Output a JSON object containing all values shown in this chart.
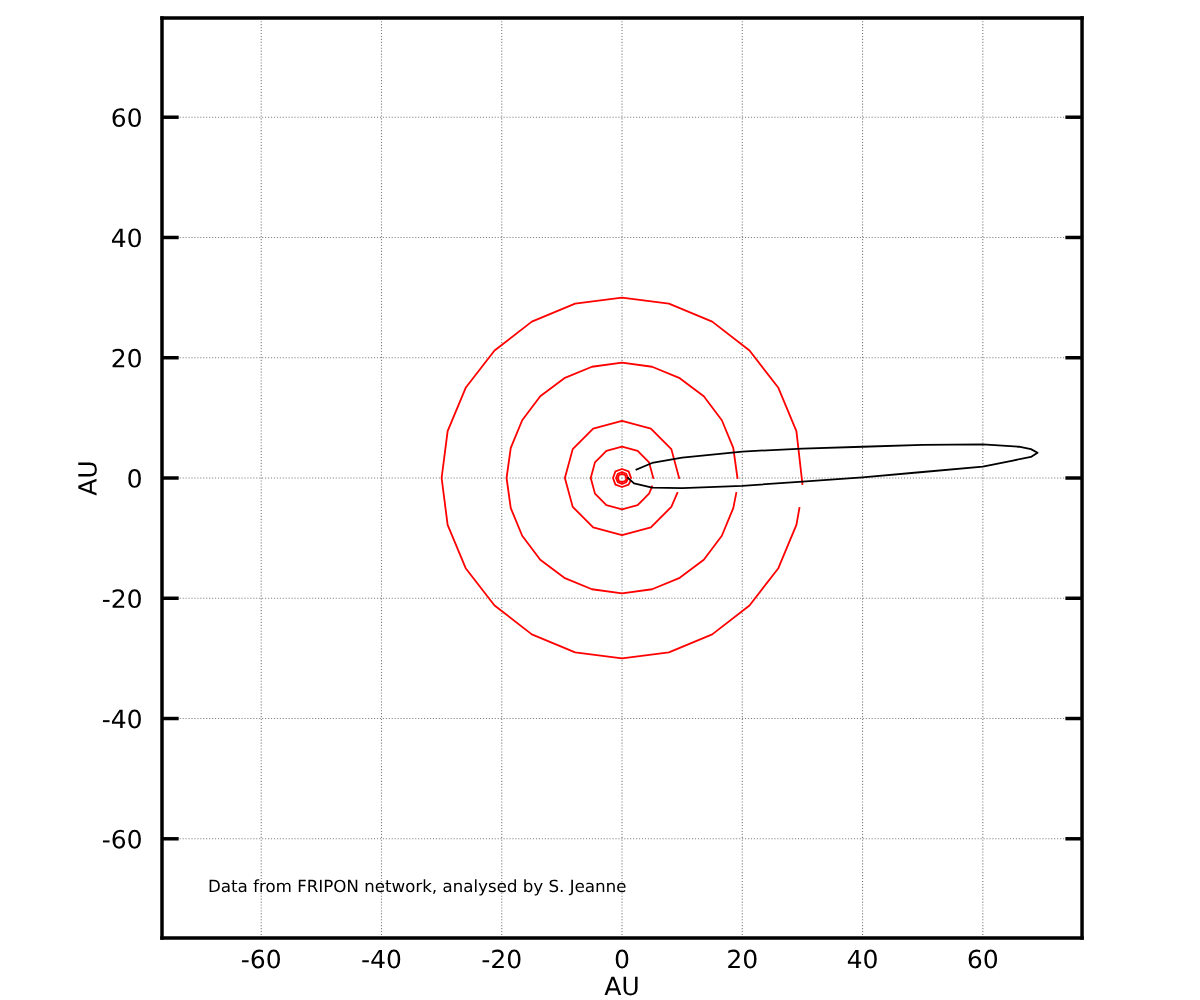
{
  "chart_data": {
    "type": "line",
    "xlabel": "AU",
    "ylabel": "AU",
    "xlim": [
      -76.5,
      76.5
    ],
    "ylim": [
      -76.5,
      76.5
    ],
    "xticks": [
      -60,
      -40,
      -20,
      0,
      20,
      40,
      60
    ],
    "yticks": [
      -60,
      -40,
      -20,
      0,
      20,
      40,
      60
    ],
    "grid": true,
    "legend": false,
    "marker": "none",
    "line_style": "solid",
    "annotations": [
      "Data from FRIPON network, analysed by S. Jeanne"
    ],
    "series": [
      {
        "color": "#ff0000",
        "x": [
          30,
          29,
          26,
          21.2,
          15,
          7.8,
          0,
          -7.8,
          -15,
          -21.2,
          -26,
          -29,
          -30,
          -29,
          -26,
          -21.2,
          -15,
          -7.8,
          0,
          7.8,
          15,
          21.2,
          26,
          29,
          29.5
        ],
        "values": [
          -1,
          7.8,
          15,
          21.2,
          26,
          29,
          30,
          29,
          26,
          21.2,
          15,
          7.8,
          0,
          -7.8,
          -15,
          -21.2,
          -26,
          -29,
          -30,
          -29,
          -26,
          -21.2,
          -15,
          -7.8,
          -5
        ]
      },
      {
        "color": "#ff0000",
        "x": [
          19.2,
          18.5,
          16.6,
          13.6,
          9.6,
          5,
          0,
          -5,
          -9.6,
          -13.6,
          -16.6,
          -18.5,
          -19.2,
          -18.5,
          -16.6,
          -13.6,
          -9.6,
          -5,
          0,
          5,
          9.6,
          13.6,
          16.6,
          18.5,
          19
        ],
        "values": [
          0,
          5,
          9.6,
          13.6,
          16.6,
          18.5,
          19.2,
          18.5,
          16.6,
          13.6,
          9.6,
          5,
          0,
          -5,
          -9.6,
          -13.6,
          -16.6,
          -18.5,
          -19.2,
          -18.5,
          -16.6,
          -13.6,
          -9.6,
          -5,
          -2.5
        ]
      },
      {
        "color": "#ff0000",
        "x": [
          9.5,
          8.2,
          4.8,
          0,
          -4.8,
          -8.2,
          -9.5,
          -8.2,
          -4.8,
          0,
          4.8,
          8.2,
          9.2
        ],
        "values": [
          0,
          4.8,
          8.2,
          9.5,
          8.2,
          4.8,
          0,
          -4.8,
          -8.2,
          -9.5,
          -8.2,
          -4.8,
          -2.5
        ]
      },
      {
        "color": "#ff0000",
        "x": [
          5.2,
          4.5,
          2.6,
          0,
          -2.6,
          -4.5,
          -5.2,
          -4.5,
          -2.6,
          0,
          2.6,
          4.5,
          5
        ],
        "values": [
          0,
          2.6,
          4.5,
          5.2,
          4.5,
          2.6,
          0,
          -2.6,
          -4.5,
          -5.2,
          -4.5,
          -2.6,
          -1.4
        ]
      },
      {
        "color": "#ff0000",
        "x": [
          1.5,
          1.1,
          0,
          -1.1,
          -1.5,
          -1.1,
          0,
          1.1,
          1.4
        ],
        "values": [
          0,
          1.1,
          1.5,
          1.1,
          0,
          -1.1,
          -1.5,
          -1.1,
          -0.5
        ]
      },
      {
        "color": "#ff0000",
        "x": [
          1,
          0.7,
          0,
          -0.7,
          -1,
          -0.7,
          0,
          0.7,
          0.9
        ],
        "values": [
          0,
          0.7,
          1,
          0.7,
          0,
          -0.7,
          -1,
          -0.7,
          -0.3
        ]
      },
      {
        "color": "#ff0000",
        "x": [
          0.7,
          0.5,
          0,
          -0.5,
          -0.7,
          -0.5,
          0,
          0.5,
          0.7
        ],
        "values": [
          0,
          0.5,
          0.7,
          0.5,
          0,
          -0.5,
          -0.7,
          -0.5,
          -0.2
        ]
      },
      {
        "color": "#000000",
        "x": [
          2.4,
          5,
          10,
          20,
          30,
          40,
          50,
          60,
          66,
          68,
          69.1,
          68,
          65,
          60,
          50,
          40,
          30,
          20,
          10,
          5,
          2,
          1
        ],
        "values": [
          1.4,
          2.5,
          3.4,
          4.4,
          4.9,
          5.2,
          5.5,
          5.6,
          5.2,
          4.8,
          4.2,
          3.5,
          2.9,
          1.9,
          1,
          0.1,
          -0.6,
          -1.3,
          -1.7,
          -1.6,
          -0.9,
          0
        ]
      }
    ]
  }
}
